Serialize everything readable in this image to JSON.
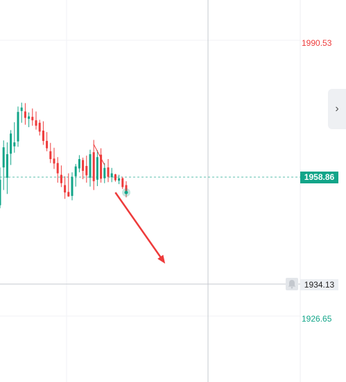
{
  "chart_data": {
    "type": "candlestick",
    "ylim": [
      1920.3,
      1998.1
    ],
    "price_labels": {
      "high": "1990.53",
      "current": "1958.86",
      "crosshair": "1934.13",
      "low": "1926.65"
    },
    "candles": [
      {
        "o": 1956.3,
        "h": 1964.0,
        "l": 1955.7,
        "c": 1961.5
      },
      {
        "o": 1964.0,
        "h": 1969.5,
        "l": 1959.4,
        "c": 1968.1
      },
      {
        "o": 1961.9,
        "h": 1969.1,
        "l": 1958.6,
        "c": 1966.7
      },
      {
        "o": 1966.8,
        "h": 1971.6,
        "l": 1964.5,
        "c": 1970.9
      },
      {
        "o": 1968.3,
        "h": 1973.2,
        "l": 1967.0,
        "c": 1969.1
      },
      {
        "o": 1969.3,
        "h": 1976.4,
        "l": 1968.2,
        "c": 1975.3
      },
      {
        "o": 1975.5,
        "h": 1977.2,
        "l": 1973.1,
        "c": 1976.2
      },
      {
        "o": 1975.4,
        "h": 1977.1,
        "l": 1972.7,
        "c": 1974.1
      },
      {
        "o": 1973.9,
        "h": 1975.2,
        "l": 1972.2,
        "c": 1974.4
      },
      {
        "o": 1974.3,
        "h": 1976.0,
        "l": 1972.5,
        "c": 1973.6
      },
      {
        "o": 1973.6,
        "h": 1975.4,
        "l": 1971.7,
        "c": 1972.5
      },
      {
        "o": 1973.1,
        "h": 1973.7,
        "l": 1970.5,
        "c": 1971.3
      },
      {
        "o": 1971.5,
        "h": 1973.4,
        "l": 1968.6,
        "c": 1969.4
      },
      {
        "o": 1969.4,
        "h": 1971.2,
        "l": 1967.3,
        "c": 1967.9
      },
      {
        "o": 1967.3,
        "h": 1969.0,
        "l": 1964.9,
        "c": 1965.7
      },
      {
        "o": 1965.8,
        "h": 1968.0,
        "l": 1963.7,
        "c": 1964.8
      },
      {
        "o": 1964.9,
        "h": 1966.1,
        "l": 1960.9,
        "c": 1962.8
      },
      {
        "o": 1962.5,
        "h": 1964.4,
        "l": 1960.0,
        "c": 1960.8
      },
      {
        "o": 1960.4,
        "h": 1962.2,
        "l": 1957.6,
        "c": 1958.9
      },
      {
        "o": 1959.0,
        "h": 1962.8,
        "l": 1958.0,
        "c": 1958.1
      },
      {
        "o": 1958.2,
        "h": 1963.0,
        "l": 1957.3,
        "c": 1962.1
      },
      {
        "o": 1962.2,
        "h": 1964.7,
        "l": 1960.1,
        "c": 1964.2
      },
      {
        "o": 1963.8,
        "h": 1966.5,
        "l": 1963.0,
        "c": 1965.7
      },
      {
        "o": 1965.5,
        "h": 1966.0,
        "l": 1961.6,
        "c": 1963.3
      },
      {
        "o": 1964.3,
        "h": 1966.4,
        "l": 1960.9,
        "c": 1962.4
      },
      {
        "o": 1961.9,
        "h": 1967.6,
        "l": 1960.1,
        "c": 1966.7
      },
      {
        "o": 1967.1,
        "h": 1969.6,
        "l": 1959.4,
        "c": 1961.2
      },
      {
        "o": 1961.5,
        "h": 1967.5,
        "l": 1960.2,
        "c": 1966.1
      },
      {
        "o": 1966.6,
        "h": 1967.9,
        "l": 1960.9,
        "c": 1961.7
      },
      {
        "o": 1961.8,
        "h": 1964.9,
        "l": 1960.8,
        "c": 1963.9
      },
      {
        "o": 1964.0,
        "h": 1965.7,
        "l": 1961.0,
        "c": 1962.1
      },
      {
        "o": 1962.0,
        "h": 1963.9,
        "l": 1961.0,
        "c": 1962.8
      },
      {
        "o": 1962.6,
        "h": 1962.7,
        "l": 1961.1,
        "c": 1961.4
      },
      {
        "o": 1961.3,
        "h": 1962.5,
        "l": 1960.6,
        "c": 1961.8
      },
      {
        "o": 1961.8,
        "h": 1962.1,
        "l": 1959.6,
        "c": 1960.0
      },
      {
        "o": 1960.4,
        "h": 1961.2,
        "l": 1957.9,
        "c": 1958.9
      }
    ],
    "arrow": {
      "from": {
        "candle": 32,
        "price": 1958.9
      },
      "to": {
        "candle": 45.8,
        "price": 1944.4
      }
    },
    "trend_line": {
      "from": {
        "candle": 26,
        "price": 1968.7
      },
      "to": {
        "candle": 29,
        "price": 1964.5
      }
    },
    "colors": {
      "up": "#12a589",
      "down": "#ee3b3b",
      "grid": "#f0f2f5",
      "crosshair": "#c5c9cf",
      "current_line": "#12a589",
      "arrow": "#ee3b3b"
    }
  }
}
